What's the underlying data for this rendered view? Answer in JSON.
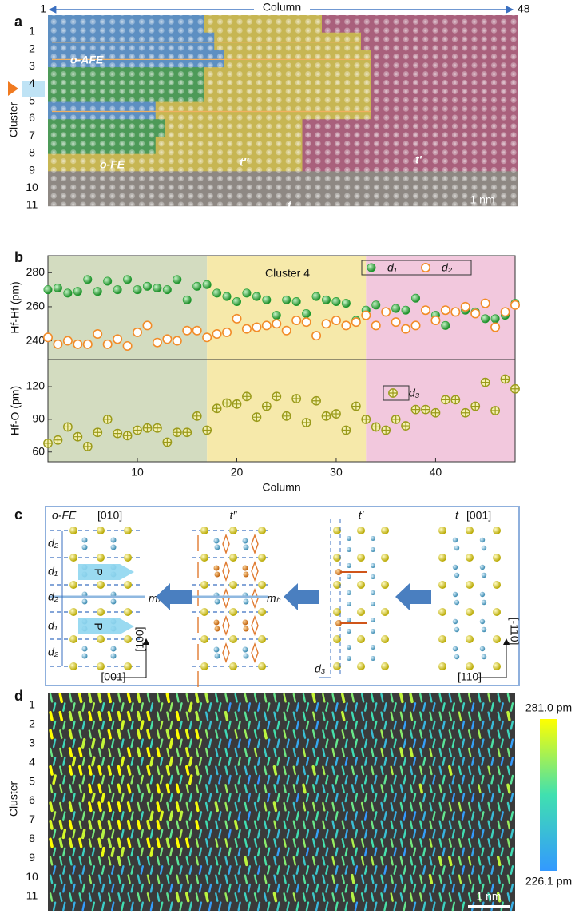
{
  "panel_a": {
    "label": "a",
    "column_title": "Column",
    "column_start": "1",
    "column_end": "48",
    "axis_label": "Cluster",
    "clusters": [
      "1",
      "2",
      "3",
      "4",
      "5",
      "6",
      "7",
      "8",
      "9",
      "10",
      "11"
    ],
    "domains": [
      "o-AFE",
      "o-FE",
      "t″",
      "t′",
      "t"
    ],
    "scale_bar": "1 nm"
  },
  "chart_data": [
    {
      "type": "scatter",
      "label": "b",
      "annotation": "Cluster 4",
      "ylabel": "Hf-Hf (pm)",
      "xlim": [
        1,
        48
      ],
      "ylim": [
        229,
        290
      ],
      "yticks": [
        240,
        260,
        280
      ],
      "regions": [
        {
          "start": 1,
          "end": 17,
          "color": "#d3dcc0"
        },
        {
          "start": 17,
          "end": 33,
          "color": "#f6e9aa"
        },
        {
          "start": 33,
          "end": 48,
          "color": "#f2c8dd"
        }
      ],
      "x": [
        1,
        2,
        3,
        4,
        5,
        6,
        7,
        8,
        9,
        10,
        11,
        12,
        13,
        14,
        15,
        16,
        17,
        18,
        19,
        20,
        21,
        22,
        23,
        24,
        25,
        26,
        27,
        28,
        29,
        30,
        31,
        32,
        33,
        34,
        35,
        36,
        37,
        38,
        39,
        40,
        41,
        42,
        43,
        44,
        45,
        46,
        47,
        48
      ],
      "series": [
        {
          "name": "d₁",
          "color": "#1fa12f",
          "marker": "filled",
          "values": [
            270,
            271,
            268,
            269,
            276,
            269,
            275,
            270,
            276,
            270,
            272,
            271,
            270,
            276,
            264,
            272,
            273,
            268,
            266,
            263,
            268,
            266,
            264,
            255,
            264,
            263,
            256,
            266,
            264,
            263,
            262,
            252,
            258,
            261,
            257,
            259,
            258,
            265,
            258,
            255,
            249,
            257,
            258,
            257,
            253,
            253,
            255,
            262
          ]
        },
        {
          "name": "d₂",
          "color": "#f28c28",
          "marker": "open",
          "values": [
            242,
            238,
            240,
            238,
            238,
            244,
            238,
            241,
            237,
            245,
            249,
            239,
            241,
            240,
            246,
            246,
            242,
            244,
            245,
            253,
            247,
            248,
            249,
            250,
            246,
            252,
            251,
            243,
            250,
            252,
            249,
            251,
            255,
            249,
            257,
            251,
            247,
            249,
            258,
            252,
            258,
            257,
            260,
            256,
            262,
            248,
            257,
            261
          ]
        }
      ]
    },
    {
      "type": "scatter",
      "ylabel": "Hf-O (pm)",
      "xlabel": "Column",
      "xlim": [
        1,
        48
      ],
      "ylim": [
        51,
        145
      ],
      "yticks": [
        60,
        90,
        120
      ],
      "xticks": [
        10,
        20,
        30,
        40
      ],
      "regions": [
        {
          "start": 1,
          "end": 17,
          "color": "#d3dcc0"
        },
        {
          "start": 17,
          "end": 33,
          "color": "#f6e9aa"
        },
        {
          "start": 33,
          "end": 48,
          "color": "#f2c8dd"
        }
      ],
      "x": [
        1,
        2,
        3,
        4,
        5,
        6,
        7,
        8,
        9,
        10,
        11,
        12,
        13,
        14,
        15,
        16,
        17,
        18,
        19,
        20,
        21,
        22,
        23,
        24,
        25,
        26,
        27,
        28,
        29,
        30,
        31,
        32,
        33,
        34,
        35,
        36,
        37,
        38,
        39,
        40,
        41,
        42,
        43,
        44,
        45,
        46,
        47,
        48
      ],
      "series": [
        {
          "name": "d₃",
          "color": "#9a9a1a",
          "marker": "cross",
          "values": [
            68,
            71,
            83,
            74,
            65,
            78,
            90,
            77,
            75,
            80,
            82,
            82,
            69,
            78,
            78,
            93,
            80,
            100,
            105,
            104,
            111,
            92,
            102,
            111,
            93,
            109,
            87,
            107,
            93,
            95,
            80,
            102,
            90,
            83,
            80,
            90,
            84,
            99,
            99,
            96,
            108,
            108,
            96,
            102,
            124,
            98,
            127,
            118
          ]
        }
      ]
    }
  ],
  "panel_c": {
    "label": "c",
    "structures": [
      {
        "name": "o-FE",
        "direction": "[010]"
      },
      {
        "name": "t″"
      },
      {
        "name": "t′"
      },
      {
        "name": "t",
        "direction": "[001]"
      }
    ],
    "spacings": [
      "d₂",
      "d₁",
      "d₂",
      "d₁",
      "d₂"
    ],
    "polarization": "P",
    "mirror": "mₕ",
    "shift": "d₃",
    "axes_left": [
      "[100]",
      "[001]"
    ],
    "axes_right": [
      "[-110]",
      "[110]"
    ]
  },
  "panel_d": {
    "label": "d",
    "axis_label": "Cluster",
    "clusters": [
      "1",
      "2",
      "3",
      "4",
      "5",
      "6",
      "7",
      "8",
      "9",
      "10",
      "11"
    ],
    "colorbar": {
      "max_label": "281.0 pm",
      "min_label": "226.1 pm"
    },
    "scale_bar": "1 nm"
  }
}
